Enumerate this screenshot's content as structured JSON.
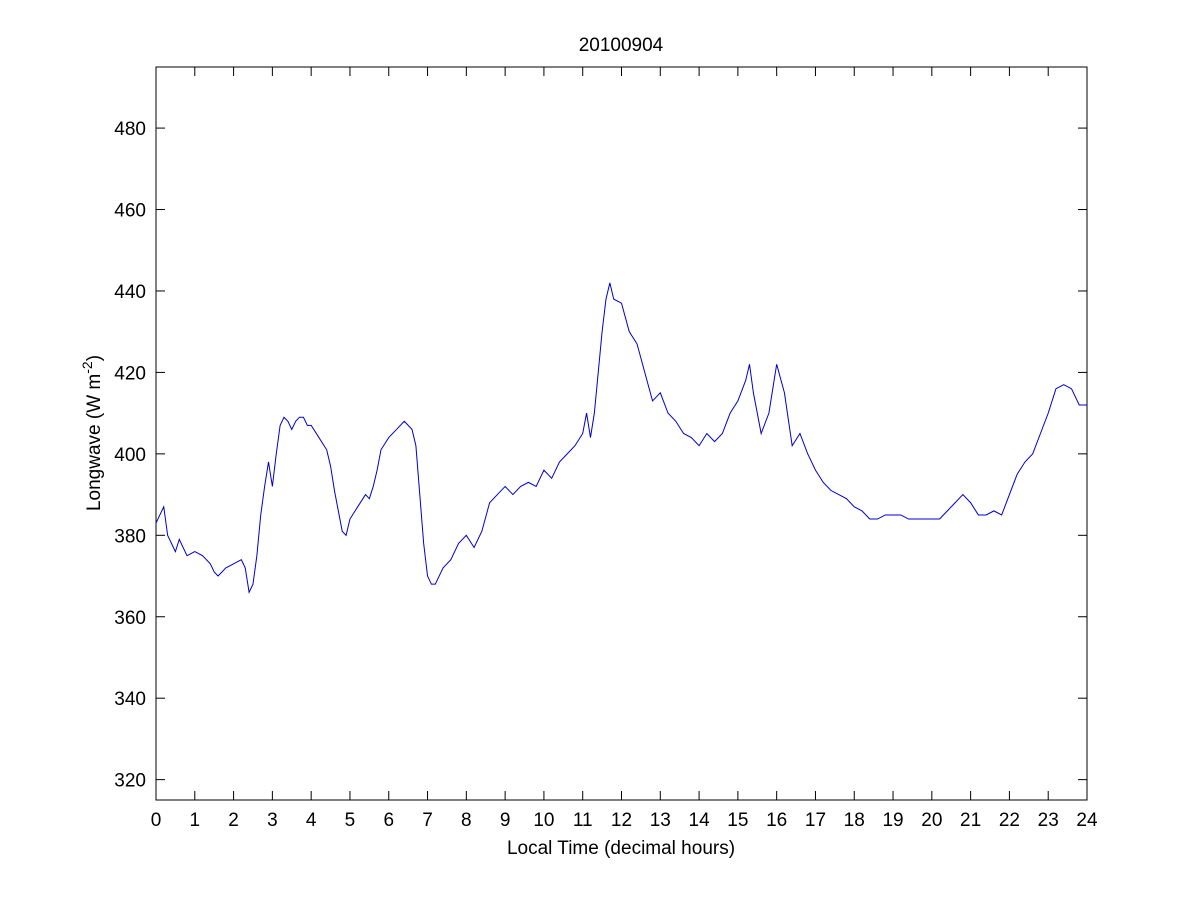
{
  "chart_data": {
    "type": "line",
    "title": "20100904",
    "x_label": "Local Time (decimal hours)",
    "y_label": {
      "text": "Longwave (W m",
      "sup": "-2",
      "end": ")"
    },
    "x": [
      0,
      0.2,
      0.3,
      0.5,
      0.6,
      0.8,
      1.0,
      1.2,
      1.4,
      1.5,
      1.6,
      1.8,
      2.0,
      2.2,
      2.3,
      2.4,
      2.5,
      2.6,
      2.7,
      2.8,
      2.9,
      3.0,
      3.1,
      3.2,
      3.3,
      3.4,
      3.5,
      3.6,
      3.7,
      3.8,
      3.9,
      4.0,
      4.2,
      4.4,
      4.5,
      4.6,
      4.7,
      4.8,
      4.9,
      5.0,
      5.2,
      5.4,
      5.5,
      5.6,
      5.7,
      5.8,
      6.0,
      6.2,
      6.4,
      6.6,
      6.7,
      6.8,
      6.9,
      7.0,
      7.1,
      7.2,
      7.4,
      7.6,
      7.8,
      8.0,
      8.2,
      8.4,
      8.6,
      8.8,
      9.0,
      9.2,
      9.4,
      9.6,
      9.8,
      10.0,
      10.2,
      10.4,
      10.6,
      10.8,
      11.0,
      11.1,
      11.2,
      11.3,
      11.4,
      11.5,
      11.6,
      11.7,
      11.8,
      12.0,
      12.2,
      12.4,
      12.6,
      12.8,
      13.0,
      13.2,
      13.4,
      13.6,
      13.8,
      14.0,
      14.2,
      14.4,
      14.6,
      14.8,
      15.0,
      15.2,
      15.3,
      15.4,
      15.6,
      15.8,
      16.0,
      16.2,
      16.4,
      16.6,
      16.8,
      17.0,
      17.2,
      17.4,
      17.6,
      17.8,
      18.0,
      18.2,
      18.4,
      18.6,
      18.8,
      19.0,
      19.2,
      19.4,
      19.6,
      19.8,
      20.0,
      20.2,
      20.4,
      20.6,
      20.8,
      21.0,
      21.2,
      21.4,
      21.6,
      21.8,
      22.0,
      22.2,
      22.4,
      22.6,
      22.8,
      23.0,
      23.2,
      23.4,
      23.6,
      23.8,
      24.0
    ],
    "series": [
      {
        "name": "Longwave",
        "color": "#0000cc",
        "values": [
          383,
          387,
          380,
          376,
          379,
          375,
          376,
          375,
          373,
          371,
          370,
          372,
          373,
          374,
          372,
          366,
          368,
          375,
          385,
          392,
          398,
          392,
          400,
          407,
          409,
          408,
          406,
          408,
          409,
          409,
          407,
          407,
          404,
          401,
          397,
          391,
          386,
          381,
          380,
          384,
          387,
          390,
          389,
          392,
          396,
          401,
          404,
          406,
          408,
          406,
          402,
          390,
          378,
          370,
          368,
          368,
          372,
          374,
          378,
          380,
          377,
          381,
          388,
          390,
          392,
          390,
          392,
          393,
          392,
          396,
          394,
          398,
          400,
          402,
          405,
          410,
          404,
          410,
          420,
          430,
          438,
          442,
          438,
          437,
          430,
          427,
          420,
          413,
          415,
          410,
          408,
          405,
          404,
          402,
          405,
          403,
          405,
          410,
          413,
          418,
          422,
          415,
          405,
          410,
          422,
          415,
          402,
          405,
          400,
          396,
          393,
          391,
          390,
          389,
          387,
          386,
          384,
          384,
          385,
          385,
          385,
          384,
          384,
          384,
          384,
          384,
          386,
          388,
          390,
          388,
          385,
          385,
          386,
          385,
          390,
          395,
          398,
          400,
          405,
          410,
          416,
          417,
          416,
          412,
          412
        ]
      }
    ],
    "xlim": [
      0,
      24
    ],
    "ylim": [
      315,
      495
    ],
    "xticks": [
      0,
      1,
      2,
      3,
      4,
      5,
      6,
      7,
      8,
      9,
      10,
      11,
      12,
      13,
      14,
      15,
      16,
      17,
      18,
      19,
      20,
      21,
      22,
      23,
      24
    ],
    "yticks": [
      320,
      340,
      360,
      380,
      400,
      420,
      440,
      460,
      480
    ],
    "grid": false
  }
}
